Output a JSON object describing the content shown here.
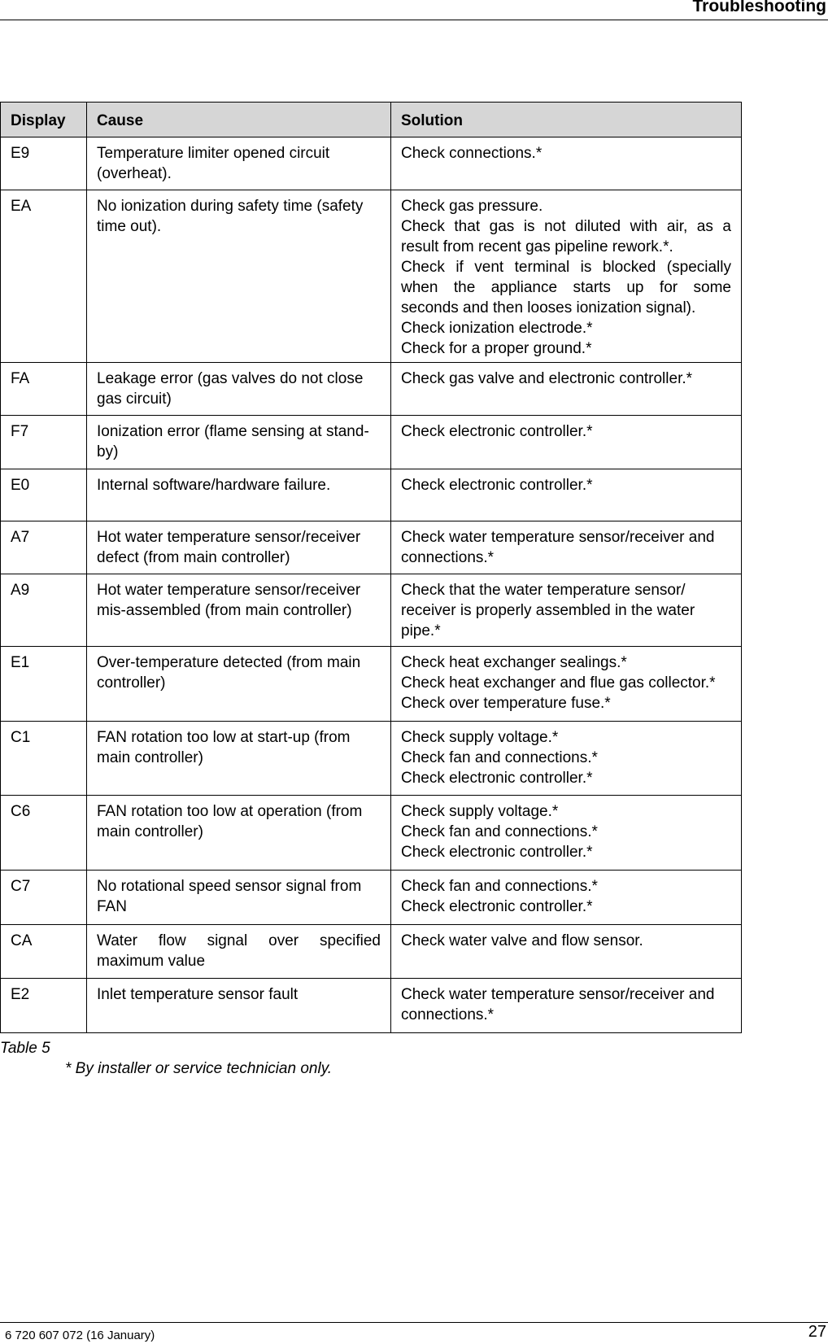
{
  "header": {
    "title": "Troubleshooting"
  },
  "table": {
    "columns": [
      "Display",
      "Cause",
      "Solution"
    ],
    "rows": [
      {
        "display": "E9",
        "cause": [
          [
            "Temperature limiter opened circuit",
            "(overheat)."
          ]
        ],
        "solution": [
          [
            "Check connections.*"
          ]
        ]
      },
      {
        "display": "EA",
        "cause": [
          [
            "No ionization during safety time (safety",
            "time out)."
          ]
        ],
        "solution": [
          [
            "Check gas pressure."
          ],
          [
            "Check that gas is not diluted with air, as a",
            "result from recent gas pipeline rework.*."
          ],
          [
            "Check if vent terminal is blocked (specially",
            "when the appliance starts up for some",
            "seconds and then looses ionization signal)."
          ],
          [
            "Check ionization electrode.*"
          ],
          [
            "Check for a proper ground.*"
          ]
        ]
      },
      {
        "display": "FA",
        "cause": [
          [
            "Leakage error (gas valves do not close",
            "gas circuit)"
          ]
        ],
        "solution": [
          [
            "Check gas valve and electronic controller.*"
          ]
        ]
      },
      {
        "display": "F7",
        "cause": [
          [
            "Ionization error (flame sensing at stand-",
            "by)"
          ]
        ],
        "solution": [
          [
            "Check electronic controller.*"
          ]
        ]
      },
      {
        "display": "E0",
        "cause": [
          [
            "Internal software/hardware failure."
          ]
        ],
        "solution": [
          [
            "Check electronic controller.*"
          ]
        ]
      },
      {
        "display": "A7",
        "cause": [
          [
            "Hot water temperature sensor/receiver",
            "defect (from main controller)"
          ]
        ],
        "solution": [
          [
            "Check water temperature sensor/receiver and",
            "connections.*"
          ]
        ]
      },
      {
        "display": "A9",
        "cause": [
          [
            "Hot water temperature sensor/receiver",
            "mis-assembled (from main controller)"
          ]
        ],
        "solution": [
          [
            "Check that the water temperature sensor/",
            "receiver is properly assembled in the water",
            "pipe.*"
          ]
        ]
      },
      {
        "display": "E1",
        "cause": [
          [
            "Over-temperature detected (from main",
            "controller)"
          ]
        ],
        "solution": [
          [
            "Check heat exchanger sealings.*"
          ],
          [
            "Check heat exchanger and flue gas collector.*"
          ],
          [
            "Check over temperature fuse.*"
          ]
        ]
      },
      {
        "display": "C1",
        "cause": [
          [
            "FAN rotation too low at start-up (from",
            "main controller)"
          ]
        ],
        "solution": [
          [
            "Check supply voltage.*"
          ],
          [
            "Check fan and connections.*"
          ],
          [
            "Check electronic controller.*"
          ]
        ]
      },
      {
        "display": "C6",
        "cause": [
          [
            "FAN rotation too low at operation (from",
            "main controller)"
          ]
        ],
        "solution": [
          [
            "Check supply voltage.*"
          ],
          [
            "Check fan and connections.*"
          ],
          [
            "Check electronic controller.*"
          ]
        ]
      },
      {
        "display": "C7",
        "cause": [
          [
            "No rotational speed sensor signal from",
            "FAN"
          ]
        ],
        "solution": [
          [
            "Check fan and connections.*"
          ],
          [
            "Check electronic controller.*"
          ]
        ]
      },
      {
        "display": "CA",
        "cause": [
          [
            "Water flow signal over specified",
            "maximum value"
          ]
        ],
        "solution": [
          [
            "Check water valve and flow sensor."
          ]
        ]
      },
      {
        "display": "E2",
        "cause": [
          [
            "Inlet temperature sensor fault"
          ]
        ],
        "solution": [
          [
            "Check water temperature sensor/receiver and",
            "connections.*"
          ]
        ]
      }
    ]
  },
  "caption": "Table 5",
  "footnote": "* By installer or service technician only.",
  "footer": {
    "doc_number": "6 720 607 072 (16 January)",
    "page": "27"
  }
}
